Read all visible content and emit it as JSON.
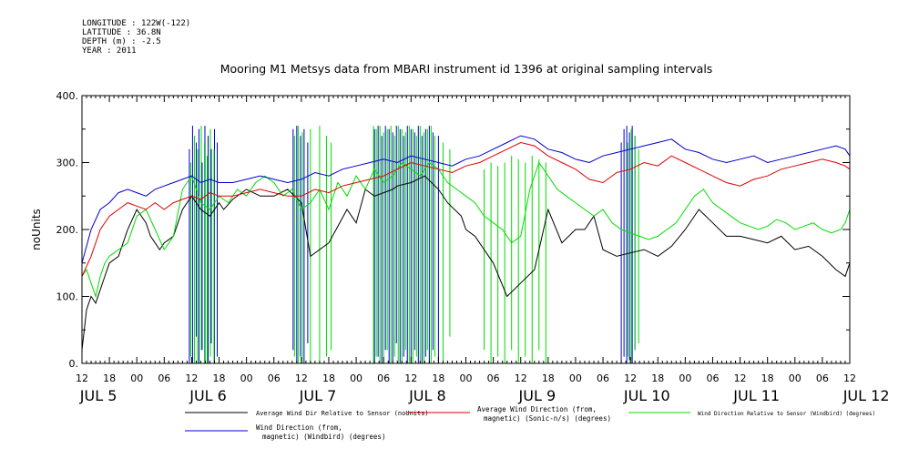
{
  "header": {
    "longitude": "LONGITUDE : 122W(-122)",
    "latitude": "LATITUDE : 36.8N",
    "depth": "DEPTH (m) : -2.5",
    "year": "YEAR : 2011"
  },
  "chart_data": {
    "type": "line",
    "title": "Mooring M1 Metsys data from MBARI instrument id 1396 at original sampling intervals",
    "ylabel": "noUnits",
    "xlabel": "",
    "ylim": [
      0,
      400
    ],
    "yticks": [
      0,
      100,
      200,
      300,
      400
    ],
    "ytick_labels": [
      "0.",
      "100.",
      "200.",
      "300.",
      "400."
    ],
    "xlim_hours": [
      0,
      168
    ],
    "hour_ticks": [
      "12",
      "18",
      "00",
      "06",
      "12",
      "18",
      "00",
      "06",
      "12",
      "18",
      "00",
      "06",
      "12",
      "18",
      "00",
      "06",
      "12",
      "18",
      "00",
      "06",
      "12",
      "18",
      "00",
      "06",
      "12",
      "18",
      "00",
      "06",
      "12"
    ],
    "day_labels": [
      "JUL  5",
      "JUL  6",
      "JUL  7",
      "JUL  8",
      "JUL  9",
      "JUL 10",
      "JUL 11",
      "JUL 12"
    ],
    "grid": false,
    "legend_position": "bottom",
    "series": [
      {
        "name": "Average Wind Dir Relative to Sensor (noUnits)",
        "color": "#000000",
        "x": [
          0,
          1,
          2,
          3,
          4,
          5,
          6,
          8,
          10,
          12,
          14,
          15,
          16,
          17,
          18,
          20,
          22,
          24,
          26,
          28,
          30,
          31,
          33,
          36,
          39,
          42,
          45,
          48,
          50,
          54,
          58,
          60,
          62,
          64,
          66,
          68,
          69,
          72,
          75,
          78,
          80,
          83,
          84,
          86,
          90,
          93,
          96,
          99,
          102,
          105,
          108,
          110,
          112,
          114,
          117,
          120,
          123,
          126,
          129,
          132,
          135,
          138,
          141,
          144,
          147,
          150,
          153,
          156,
          159,
          162,
          165,
          167,
          168
        ],
        "y": [
          20,
          80,
          100,
          90,
          110,
          130,
          150,
          160,
          200,
          230,
          210,
          190,
          180,
          170,
          180,
          190,
          230,
          250,
          230,
          220,
          240,
          230,
          245,
          260,
          250,
          250,
          260,
          240,
          160,
          180,
          230,
          210,
          260,
          250,
          255,
          260,
          265,
          270,
          280,
          260,
          240,
          220,
          200,
          190,
          150,
          100,
          120,
          140,
          230,
          180,
          200,
          200,
          220,
          170,
          160,
          165,
          170,
          160,
          175,
          200,
          230,
          210,
          190,
          190,
          185,
          180,
          190,
          170,
          175,
          160,
          140,
          130,
          150
        ]
      },
      {
        "name": "Average Wind Direction (from, magnetic) (Sonic-n/s) (degrees)",
        "color": "#e00000",
        "x": [
          0,
          2,
          4,
          6,
          8,
          10,
          12,
          14,
          16,
          18,
          20,
          22,
          24,
          26,
          28,
          30,
          33,
          36,
          39,
          42,
          45,
          48,
          51,
          54,
          57,
          60,
          63,
          66,
          69,
          72,
          75,
          78,
          81,
          84,
          87,
          90,
          93,
          96,
          99,
          102,
          105,
          108,
          111,
          114,
          117,
          120,
          123,
          126,
          129,
          132,
          135,
          138,
          141,
          144,
          147,
          150,
          153,
          156,
          159,
          162,
          165,
          167,
          168
        ],
        "y": [
          130,
          160,
          200,
          220,
          230,
          240,
          235,
          230,
          240,
          230,
          240,
          245,
          250,
          245,
          255,
          250,
          250,
          255,
          260,
          255,
          250,
          250,
          260,
          255,
          265,
          270,
          275,
          280,
          290,
          300,
          295,
          290,
          285,
          295,
          300,
          310,
          320,
          330,
          325,
          310,
          300,
          290,
          275,
          270,
          285,
          290,
          300,
          295,
          310,
          300,
          290,
          280,
          270,
          265,
          275,
          280,
          290,
          295,
          300,
          305,
          300,
          295,
          290
        ]
      },
      {
        "name": "Wind Direction Relative to Sensor (Windbird) (degrees)",
        "color": "#00dd00",
        "x": [
          0,
          1,
          2,
          3,
          4,
          5,
          6,
          8,
          10,
          12,
          14,
          16,
          18,
          20,
          22,
          24,
          26,
          28,
          30,
          32,
          34,
          36,
          38,
          40,
          42,
          44,
          46,
          48,
          50,
          52,
          54,
          56,
          58,
          60,
          62,
          64,
          66,
          68,
          70,
          72,
          74,
          76,
          78,
          80,
          82,
          84,
          86,
          88,
          90,
          92,
          94,
          96,
          98,
          100,
          102,
          104,
          106,
          108,
          110,
          112,
          114,
          116,
          118,
          120,
          122,
          124,
          126,
          128,
          130,
          132,
          134,
          136,
          138,
          140,
          142,
          144,
          146,
          148,
          150,
          152,
          154,
          156,
          158,
          160,
          162,
          164,
          166,
          167,
          168
        ],
        "y": [
          130,
          140,
          120,
          100,
          130,
          150,
          160,
          170,
          180,
          220,
          230,
          200,
          170,
          190,
          260,
          280,
          240,
          230,
          250,
          240,
          260,
          250,
          270,
          280,
          270,
          250,
          260,
          230,
          240,
          260,
          230,
          270,
          250,
          280,
          260,
          290,
          270,
          280,
          300,
          290,
          280,
          300,
          290,
          270,
          260,
          250,
          240,
          220,
          210,
          200,
          180,
          190,
          260,
          300,
          280,
          260,
          250,
          240,
          230,
          220,
          230,
          210,
          200,
          195,
          190,
          185,
          190,
          200,
          210,
          230,
          250,
          260,
          240,
          230,
          220,
          210,
          205,
          200,
          205,
          215,
          210,
          200,
          205,
          210,
          200,
          195,
          200,
          210,
          230
        ]
      },
      {
        "name": "Wind Direction (from, magnetic) (Windbird) (degrees)",
        "color": "#0000cc",
        "x": [
          0,
          2,
          4,
          6,
          8,
          10,
          12,
          14,
          16,
          18,
          20,
          22,
          24,
          26,
          28,
          30,
          33,
          36,
          39,
          42,
          45,
          48,
          51,
          54,
          57,
          60,
          63,
          66,
          69,
          72,
          75,
          78,
          81,
          84,
          87,
          90,
          93,
          96,
          99,
          102,
          105,
          108,
          111,
          114,
          117,
          120,
          123,
          126,
          129,
          132,
          135,
          138,
          141,
          144,
          147,
          150,
          153,
          156,
          159,
          162,
          165,
          167,
          168
        ],
        "y": [
          150,
          200,
          230,
          240,
          255,
          260,
          255,
          250,
          260,
          265,
          270,
          275,
          280,
          270,
          275,
          270,
          270,
          275,
          280,
          275,
          270,
          275,
          285,
          280,
          290,
          295,
          300,
          305,
          300,
          310,
          305,
          300,
          295,
          305,
          310,
          320,
          330,
          340,
          335,
          320,
          315,
          305,
          300,
          310,
          315,
          320,
          325,
          330,
          335,
          320,
          315,
          305,
          300,
          305,
          310,
          300,
          305,
          310,
          315,
          320,
          325,
          320,
          310
        ]
      }
    ],
    "spikes": [
      {
        "color": "#0000cc",
        "x": [
          23.5,
          24.2,
          25,
          25.6,
          26.3,
          26.9,
          27.6,
          28.3,
          29,
          29.6
        ],
        "y0": [
          0,
          0,
          40,
          0,
          20,
          0,
          0,
          30,
          0,
          10
        ],
        "y1": [
          320,
          355,
          330,
          350,
          300,
          355,
          340,
          320,
          350,
          330
        ]
      },
      {
        "color": "#00dd00",
        "x": [
          23.8,
          24.6,
          25.3,
          26.1,
          26.8,
          27.4,
          28.1,
          28.9
        ],
        "y0": [
          10,
          0,
          0,
          20,
          0,
          0,
          10,
          0
        ],
        "y1": [
          300,
          340,
          320,
          355,
          330,
          310,
          350,
          320
        ]
      },
      {
        "color": "#0000cc",
        "x": [
          46.2,
          47,
          47.8,
          48.6,
          49.4
        ],
        "y0": [
          20,
          0,
          10,
          0,
          30
        ],
        "y1": [
          350,
          355,
          340,
          350,
          330
        ]
      },
      {
        "color": "#00dd00",
        "x": [
          46.5,
          47.3,
          48.2,
          50,
          52,
          53.5,
          54.5
        ],
        "y0": [
          10,
          0,
          0,
          0,
          0,
          10,
          20
        ],
        "y1": [
          340,
          355,
          345,
          350,
          355,
          340,
          330
        ]
      },
      {
        "color": "#0000cc",
        "x": [
          64,
          64.8,
          65.6,
          66.4,
          67.2,
          68,
          68.8,
          69.6,
          70.4,
          71.2,
          72,
          72.8,
          73.6,
          74.4,
          75.2,
          76,
          76.8,
          78
        ],
        "y0": [
          0,
          10,
          0,
          20,
          0,
          0,
          30,
          0,
          10,
          0,
          0,
          20,
          0,
          0,
          10,
          0,
          20,
          0
        ],
        "y1": [
          350,
          355,
          340,
          355,
          350,
          345,
          355,
          350,
          340,
          355,
          350,
          345,
          355,
          340,
          350,
          355,
          345,
          340
        ]
      },
      {
        "color": "#00dd00",
        "x": [
          63.8,
          64.4,
          65.2,
          66,
          66.8,
          67.6,
          68.4,
          69.2,
          70,
          70.8,
          71.6,
          72.4,
          73.2,
          74,
          74.8,
          75.6,
          76.4,
          77.2,
          79,
          80.5
        ],
        "y0": [
          0,
          10,
          0,
          0,
          20,
          0,
          10,
          0,
          0,
          20,
          0,
          0,
          10,
          0,
          0,
          20,
          0,
          10,
          0,
          40
        ],
        "y1": [
          355,
          350,
          355,
          345,
          350,
          355,
          340,
          355,
          350,
          345,
          355,
          350,
          340,
          355,
          345,
          350,
          355,
          340,
          330,
          320
        ]
      },
      {
        "color": "#00dd00",
        "x": [
          88,
          89.5,
          91,
          92.5,
          94,
          95.5,
          97,
          98.5,
          100,
          101.5
        ],
        "y0": [
          20,
          0,
          10,
          0,
          20,
          0,
          10,
          0,
          20,
          0
        ],
        "y1": [
          290,
          300,
          295,
          300,
          310,
          305,
          300,
          310,
          305,
          300
        ]
      },
      {
        "color": "#0000cc",
        "x": [
          118,
          118.6,
          119.2,
          119.8,
          120.4,
          121
        ],
        "y0": [
          0,
          10,
          0,
          5,
          0,
          20
        ],
        "y1": [
          330,
          350,
          355,
          345,
          355,
          340
        ]
      },
      {
        "color": "#00dd00",
        "x": [
          119.4,
          120.2,
          121,
          121.8
        ],
        "y0": [
          10,
          0,
          20,
          30
        ],
        "y1": [
          330,
          350,
          340,
          320
        ]
      }
    ]
  },
  "legend": {
    "black": "Average Wind Dir Relative to Sensor (noUnits)",
    "red_line1": "Average Wind Direction (from,",
    "red_line2": "magnetic) (Sonic-n/s) (degrees)",
    "green": "Wind Direction Relative to Sensor (Windbird) (degrees)",
    "blue_line1": "Wind Direction (from,",
    "blue_line2": "magnetic) (Windbird) (degrees)"
  }
}
